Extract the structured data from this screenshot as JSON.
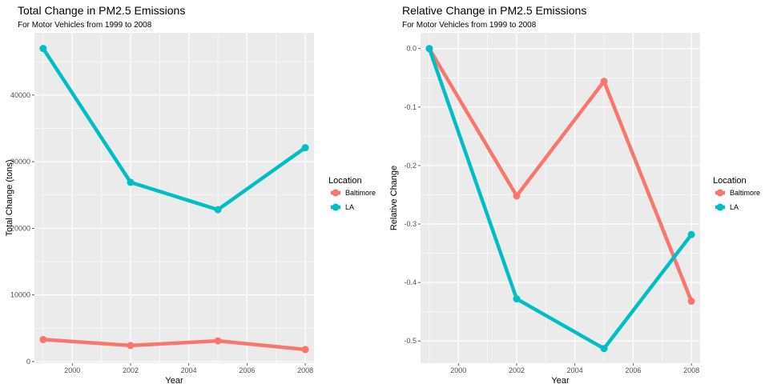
{
  "colors": {
    "Baltimore": "#F8766D",
    "LA": "#00BFC4",
    "panel": "#EBEBEB",
    "grid": "#FFFFFF",
    "tick": "#4d4d4d"
  },
  "chart_data": [
    {
      "type": "line",
      "title": "Total Change in PM2.5 Emissions",
      "subtitle": "For Motor Vehicles from 1999 to 2008",
      "xlabel": "Year",
      "ylabel": "Total Change (tons)",
      "x": [
        1999,
        2002,
        2005,
        2008
      ],
      "xlim": [
        1998.7,
        2008.3
      ],
      "ylim": [
        -250,
        49350
      ],
      "x_ticks": [
        2000,
        2002,
        2004,
        2006,
        2008
      ],
      "y_ticks": [
        0,
        10000,
        20000,
        30000,
        40000
      ],
      "y_tick_labels": [
        "0",
        "10000",
        "20000",
        "30000",
        "40000"
      ],
      "legend_title": "Location",
      "legend_position": "right",
      "grid": true,
      "series": [
        {
          "name": "Baltimore",
          "values": [
            3300,
            2400,
            3100,
            1800
          ]
        },
        {
          "name": "LA",
          "values": [
            47000,
            26900,
            22800,
            32100
          ]
        }
      ]
    },
    {
      "type": "line",
      "title": "Relative Change in PM2.5 Emissions",
      "subtitle": "For Motor Vehicles from 1999 to 2008",
      "xlabel": "Year",
      "ylabel": "Relative Change",
      "x": [
        1999,
        2002,
        2005,
        2008
      ],
      "xlim": [
        1998.7,
        2008.3
      ],
      "ylim": [
        -0.538,
        0.027
      ],
      "x_ticks": [
        2000,
        2002,
        2004,
        2006,
        2008
      ],
      "y_ticks": [
        0.0,
        -0.1,
        -0.2,
        -0.3,
        -0.4,
        -0.5
      ],
      "y_tick_labels": [
        "0.0",
        "-0.1",
        "-0.2",
        "-0.3",
        "-0.4",
        "-0.5"
      ],
      "legend_title": "Location",
      "legend_position": "right",
      "grid": true,
      "series": [
        {
          "name": "Baltimore",
          "values": [
            0.0,
            -0.252,
            -0.056,
            -0.432
          ]
        },
        {
          "name": "LA",
          "values": [
            0.0,
            -0.428,
            -0.513,
            -0.318
          ]
        }
      ]
    }
  ]
}
